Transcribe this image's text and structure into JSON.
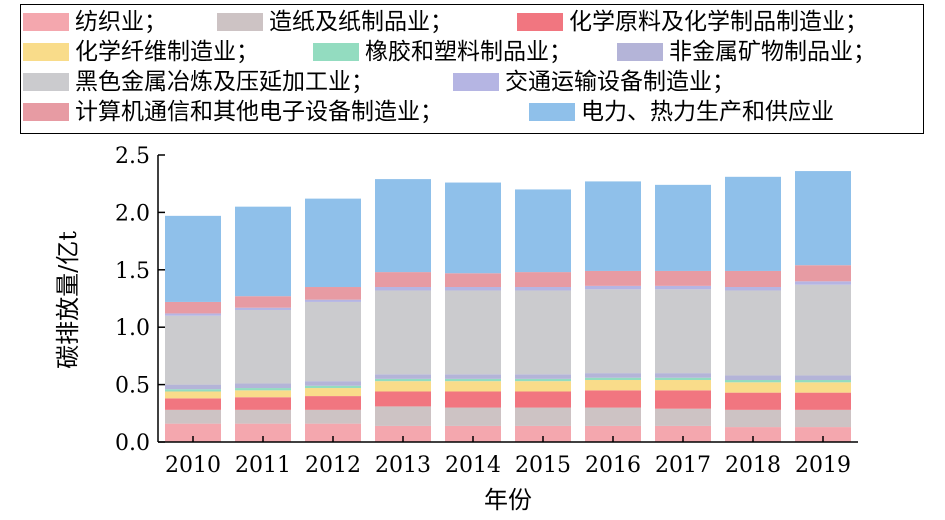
{
  "chart_data": {
    "type": "bar",
    "stacked": true,
    "title": "",
    "xlabel": "年份",
    "ylabel": "碳排放量/亿t",
    "ylim": [
      0,
      2.5
    ],
    "yticks": [
      "0.0",
      "0.5",
      "1.0",
      "1.5",
      "2.0",
      "2.5"
    ],
    "categories": [
      "2010",
      "2011",
      "2012",
      "2013",
      "2014",
      "2015",
      "2016",
      "2017",
      "2018",
      "2019"
    ],
    "legend_position": "top",
    "series": [
      {
        "name": "纺织业；",
        "color": "#f4a7ae",
        "values": [
          0.16,
          0.16,
          0.16,
          0.14,
          0.14,
          0.14,
          0.14,
          0.14,
          0.13,
          0.13
        ]
      },
      {
        "name": "造纸及纸制品业；",
        "color": "#cdc3c4",
        "values": [
          0.12,
          0.12,
          0.12,
          0.17,
          0.16,
          0.16,
          0.16,
          0.15,
          0.15,
          0.15
        ]
      },
      {
        "name": "化学原料及化学制品制造业；",
        "color": "#f17680",
        "values": [
          0.1,
          0.11,
          0.12,
          0.13,
          0.14,
          0.14,
          0.15,
          0.16,
          0.15,
          0.15
        ]
      },
      {
        "name": "化学纤维制造业；",
        "color": "#f9dc8a",
        "values": [
          0.06,
          0.06,
          0.07,
          0.09,
          0.09,
          0.09,
          0.09,
          0.09,
          0.09,
          0.09
        ]
      },
      {
        "name": "橡胶和塑料制品业；",
        "color": "#93dcc0",
        "values": [
          0.02,
          0.02,
          0.02,
          0.02,
          0.02,
          0.02,
          0.02,
          0.02,
          0.02,
          0.02
        ]
      },
      {
        "name": "非金属矿物制品业；",
        "color": "#b4b4d8",
        "values": [
          0.04,
          0.04,
          0.04,
          0.04,
          0.04,
          0.04,
          0.04,
          0.04,
          0.04,
          0.04
        ]
      },
      {
        "name": "黑色金属冶炼及压延加工业；",
        "color": "#cbcbce",
        "values": [
          0.6,
          0.64,
          0.69,
          0.73,
          0.73,
          0.73,
          0.73,
          0.73,
          0.74,
          0.79
        ]
      },
      {
        "name": "交通运输设备制造业；",
        "color": "#b5b5e3",
        "values": [
          0.02,
          0.02,
          0.02,
          0.03,
          0.03,
          0.03,
          0.03,
          0.03,
          0.03,
          0.03
        ]
      },
      {
        "name": "计算机通信和其他电子设备制造业；",
        "color": "#e79ba3",
        "values": [
          0.1,
          0.1,
          0.11,
          0.13,
          0.12,
          0.13,
          0.13,
          0.13,
          0.14,
          0.14
        ]
      },
      {
        "name": "电力、热力生产和供应业",
        "color": "#8fc0ea",
        "values": [
          0.75,
          0.78,
          0.77,
          0.81,
          0.79,
          0.72,
          0.78,
          0.75,
          0.82,
          0.82
        ]
      }
    ]
  }
}
